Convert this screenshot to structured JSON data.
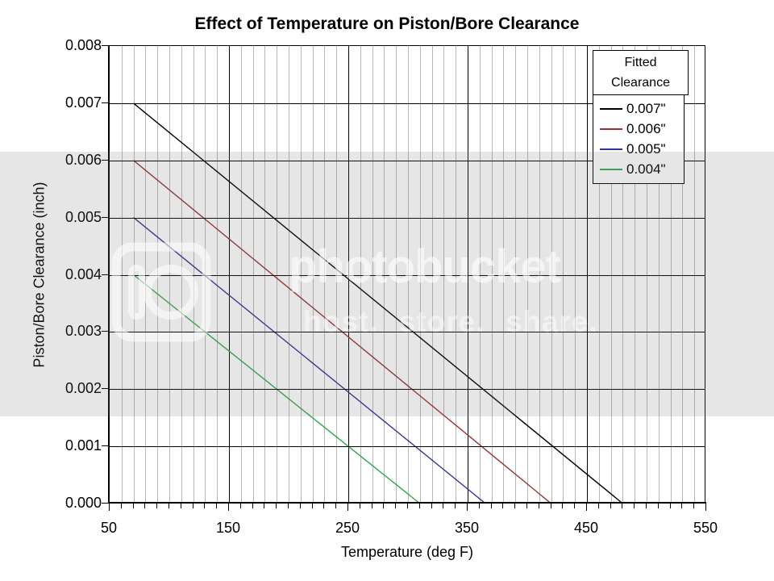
{
  "chart_data": {
    "type": "line",
    "title": "Effect of Temperature on Piston/Bore Clearance",
    "xlabel": "Temperature (deg F)",
    "ylabel": "Piston/Bore Clearance (inch)",
    "x_range": [
      50,
      550
    ],
    "y_range": [
      0,
      0.008
    ],
    "x_major_step": 100,
    "x_minor_step": 10,
    "y_tick_step": 0.001,
    "x_tick_labels": [
      "50",
      "150",
      "250",
      "350",
      "450",
      "550"
    ],
    "y_tick_labels": [
      "0.000",
      "0.001",
      "0.002",
      "0.003",
      "0.004",
      "0.005",
      "0.006",
      "0.007",
      "0.008"
    ],
    "grid": {
      "minor_color": "#b8b8b8",
      "major_color": "#000000",
      "background": "#ffffff"
    },
    "legend": {
      "title": "Fitted Clearance",
      "position": "top-right"
    },
    "series": [
      {
        "name": "0.007\"",
        "color": "#000000",
        "points": [
          [
            70,
            0.007
          ],
          [
            480,
            0.0
          ]
        ]
      },
      {
        "name": "0.006\"",
        "color": "#993333",
        "points": [
          [
            70,
            0.006
          ],
          [
            420,
            0.0
          ]
        ]
      },
      {
        "name": "0.005\"",
        "color": "#333399",
        "points": [
          [
            70,
            0.005
          ],
          [
            365,
            0.0
          ]
        ]
      },
      {
        "name": "0.004\"",
        "color": "#33aa55",
        "points": [
          [
            70,
            0.004
          ],
          [
            310,
            0.0
          ]
        ]
      }
    ]
  },
  "watermark": {
    "brand": "photobucket",
    "tagline": "host. store. share."
  }
}
